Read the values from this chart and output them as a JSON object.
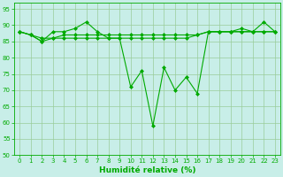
{
  "line1": [
    88,
    87,
    85,
    88,
    88,
    89,
    91,
    88,
    86,
    86,
    71,
    76,
    59,
    77,
    70,
    74,
    69,
    88,
    88,
    88,
    89,
    88,
    91,
    88
  ],
  "line2": [
    88,
    87,
    86,
    86,
    87,
    87,
    87,
    87,
    87,
    87,
    87,
    87,
    87,
    87,
    87,
    87,
    87,
    88,
    88,
    88,
    88,
    88,
    88,
    88
  ],
  "line3": [
    88,
    87,
    85,
    86,
    86,
    86,
    86,
    86,
    86,
    86,
    86,
    86,
    86,
    86,
    86,
    86,
    87,
    88,
    88,
    88,
    88,
    88,
    88,
    88
  ],
  "x": [
    0,
    1,
    2,
    3,
    4,
    5,
    6,
    7,
    8,
    9,
    10,
    11,
    12,
    13,
    14,
    15,
    16,
    17,
    18,
    19,
    20,
    21,
    22,
    23
  ],
  "line_color": "#00aa00",
  "bg_color": "#c8eee8",
  "grid_color": "#99cc99",
  "xlabel": "Humidité relative (%)",
  "ylim": [
    50,
    97
  ],
  "xlim": [
    -0.5,
    23.5
  ],
  "yticks": [
    50,
    55,
    60,
    65,
    70,
    75,
    80,
    85,
    90,
    95
  ],
  "xticks": [
    0,
    1,
    2,
    3,
    4,
    5,
    6,
    7,
    8,
    9,
    10,
    11,
    12,
    13,
    14,
    15,
    16,
    17,
    18,
    19,
    20,
    21,
    22,
    23
  ]
}
